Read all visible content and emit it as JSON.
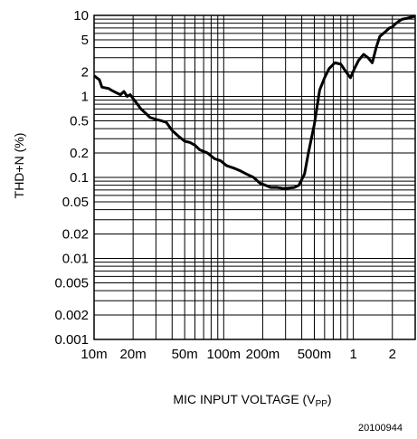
{
  "chart_data": {
    "type": "line",
    "xscale": "log",
    "yscale": "log",
    "grid": true,
    "xlim": [
      0.01,
      3.0
    ],
    "ylim": [
      0.001,
      10
    ],
    "xlabel_main": "MIC INPUT VOLTAGE (V",
    "xlabel_sub": "PP",
    "xlabel_close": ")",
    "ylabel": "THD+N (%)",
    "x_ticks": [
      {
        "value": 0.01,
        "label": "10m"
      },
      {
        "value": 0.02,
        "label": "20m"
      },
      {
        "value": 0.05,
        "label": "50m"
      },
      {
        "value": 0.1,
        "label": "100m"
      },
      {
        "value": 0.2,
        "label": "200m"
      },
      {
        "value": 0.5,
        "label": "500m"
      },
      {
        "value": 1,
        "label": "1"
      },
      {
        "value": 2,
        "label": "2"
      }
    ],
    "y_ticks": [
      {
        "value": 10,
        "label": "10"
      },
      {
        "value": 5,
        "label": "5"
      },
      {
        "value": 2,
        "label": "2"
      },
      {
        "value": 1,
        "label": "1"
      },
      {
        "value": 0.5,
        "label": "0.5"
      },
      {
        "value": 0.2,
        "label": "0.2"
      },
      {
        "value": 0.1,
        "label": "0.1"
      },
      {
        "value": 0.05,
        "label": "0.05"
      },
      {
        "value": 0.02,
        "label": "0.02"
      },
      {
        "value": 0.01,
        "label": "0.01"
      },
      {
        "value": 0.005,
        "label": "0.005"
      },
      {
        "value": 0.002,
        "label": "0.002"
      },
      {
        "value": 0.001,
        "label": "0.001"
      }
    ],
    "series": [
      {
        "color": "#000000",
        "x": [
          0.01,
          0.011,
          0.0115,
          0.013,
          0.0135,
          0.015,
          0.016,
          0.017,
          0.018,
          0.019,
          0.021,
          0.023,
          0.025,
          0.027,
          0.03,
          0.033,
          0.036,
          0.04,
          0.045,
          0.05,
          0.055,
          0.06,
          0.065,
          0.075,
          0.085,
          0.095,
          0.105,
          0.12,
          0.135,
          0.15,
          0.17,
          0.19,
          0.21,
          0.23,
          0.26,
          0.29,
          0.32,
          0.35,
          0.38,
          0.42,
          0.45,
          0.5,
          0.55,
          0.6,
          0.65,
          0.72,
          0.8,
          0.88,
          0.95,
          1.02,
          1.1,
          1.2,
          1.3,
          1.4,
          1.5,
          1.6,
          1.75,
          1.9,
          2.0,
          2.1,
          2.25,
          2.4,
          2.6,
          2.8,
          3.0
        ],
        "y": [
          1.8,
          1.6,
          1.3,
          1.25,
          1.2,
          1.1,
          1.05,
          1.15,
          1.0,
          1.05,
          0.85,
          0.7,
          0.62,
          0.55,
          0.52,
          0.5,
          0.48,
          0.38,
          0.32,
          0.28,
          0.27,
          0.25,
          0.22,
          0.2,
          0.17,
          0.16,
          0.14,
          0.13,
          0.12,
          0.11,
          0.1,
          0.085,
          0.08,
          0.075,
          0.075,
          0.073,
          0.074,
          0.075,
          0.08,
          0.11,
          0.2,
          0.45,
          1.2,
          1.7,
          2.2,
          2.6,
          2.5,
          2.0,
          1.7,
          2.2,
          2.8,
          3.3,
          3.0,
          2.6,
          4.0,
          5.5,
          6.2,
          7.0,
          7.2,
          7.8,
          8.5,
          9.0,
          9.2,
          9.5,
          9.8
        ]
      }
    ],
    "figure_id": "20100944"
  }
}
